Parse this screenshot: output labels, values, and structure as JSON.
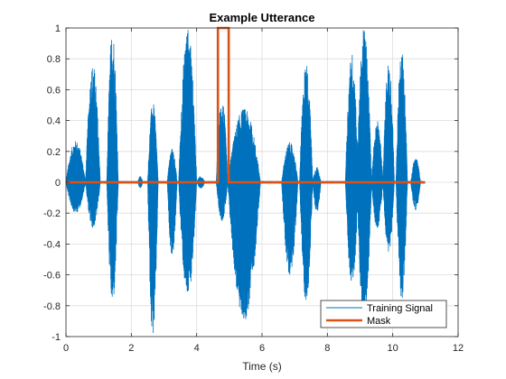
{
  "chart_data": {
    "type": "line",
    "title": "Example Utterance",
    "xlabel": "Time (s)",
    "ylabel": "",
    "xlim": [
      0,
      12
    ],
    "ylim": [
      -1,
      1
    ],
    "x_ticks": [
      0,
      2,
      4,
      6,
      8,
      10,
      12
    ],
    "x_tick_labels": [
      "0",
      "2",
      "4",
      "6",
      "8",
      "10",
      "12"
    ],
    "y_ticks": [
      1,
      0.8,
      0.6,
      0.4,
      0.2,
      0,
      -0.2,
      -0.4,
      -0.6,
      -0.8,
      -1
    ],
    "y_tick_labels": [
      "1",
      "0.8",
      "0.6",
      "0.4",
      "0.2",
      "0",
      "-0.2",
      "-0.4",
      "-0.6",
      "-0.8",
      "-1"
    ],
    "grid": true,
    "legend_position": "bottom-right",
    "series": [
      {
        "name": "Training Signal",
        "color": "#0072BD",
        "bursts": [
          {
            "start": 0.0,
            "end": 0.6,
            "amp_pos": 0.27,
            "amp_neg": 0.2
          },
          {
            "start": 0.6,
            "end": 1.05,
            "amp_pos": 0.77,
            "amp_neg": 0.3
          },
          {
            "start": 1.25,
            "end": 1.6,
            "amp_pos": 1.0,
            "amp_neg": 0.8
          },
          {
            "start": 2.2,
            "end": 2.35,
            "amp_pos": 0.04,
            "amp_neg": 0.04
          },
          {
            "start": 2.5,
            "end": 2.82,
            "amp_pos": 0.52,
            "amp_neg": 1.0
          },
          {
            "start": 3.1,
            "end": 3.4,
            "amp_pos": 0.22,
            "amp_neg": 0.48
          },
          {
            "start": 3.45,
            "end": 4.0,
            "amp_pos": 1.0,
            "amp_neg": 0.75
          },
          {
            "start": 4.0,
            "end": 4.25,
            "amp_pos": 0.04,
            "amp_neg": 0.04
          },
          {
            "start": 4.6,
            "end": 4.95,
            "amp_pos": 0.55,
            "amp_neg": 0.25
          },
          {
            "start": 4.95,
            "end": 5.95,
            "amp_pos": 0.48,
            "amp_neg": 0.9
          },
          {
            "start": 6.6,
            "end": 7.1,
            "amp_pos": 0.26,
            "amp_neg": 0.6
          },
          {
            "start": 7.15,
            "end": 7.55,
            "amp_pos": 0.78,
            "amp_neg": 0.78
          },
          {
            "start": 7.55,
            "end": 7.8,
            "amp_pos": 0.1,
            "amp_neg": 0.2
          },
          {
            "start": 8.55,
            "end": 8.95,
            "amp_pos": 0.84,
            "amp_neg": 0.68
          },
          {
            "start": 8.9,
            "end": 9.35,
            "amp_pos": 1.0,
            "amp_neg": 0.95
          },
          {
            "start": 9.35,
            "end": 9.7,
            "amp_pos": 0.4,
            "amp_neg": 0.3
          },
          {
            "start": 9.7,
            "end": 10.05,
            "amp_pos": 0.78,
            "amp_neg": 0.46
          },
          {
            "start": 10.1,
            "end": 10.45,
            "amp_pos": 0.88,
            "amp_neg": 0.76
          },
          {
            "start": 10.55,
            "end": 10.85,
            "amp_pos": 0.16,
            "amp_neg": 0.18
          }
        ]
      },
      {
        "name": "Mask",
        "color": "#D95319",
        "x": [
          0,
          4.65,
          4.65,
          4.98,
          4.98,
          10.98
        ],
        "y": [
          0,
          0,
          1,
          1,
          0,
          0
        ]
      }
    ]
  }
}
